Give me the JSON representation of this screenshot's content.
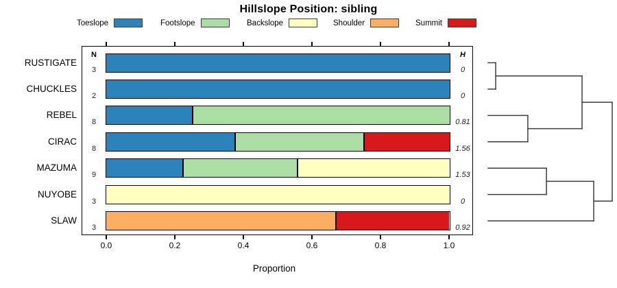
{
  "title": "Hillslope Position: sibling",
  "columns": {
    "n_header": "N",
    "h_header": "H"
  },
  "x_axis": {
    "label": "Proportion",
    "tick_labels": [
      "0.0",
      "0.2",
      "0.4",
      "0.6",
      "0.8",
      "1.0"
    ],
    "range": [
      0,
      1
    ]
  },
  "legend": [
    {
      "label": "Toeslope",
      "color": "#2B83BA"
    },
    {
      "label": "Footslope",
      "color": "#ABDDA4"
    },
    {
      "label": "Backslope",
      "color": "#FFFFBF"
    },
    {
      "label": "Shoulder",
      "color": "#FDAE61"
    },
    {
      "label": "Summit",
      "color": "#D7191C"
    }
  ],
  "chart_data": {
    "type": "bar",
    "subtype": "horizontal-stacked-proportion-with-dendrogram",
    "title": "Hillslope Position: sibling",
    "xlabel": "Proportion",
    "xlim": [
      0,
      1
    ],
    "x_ticks": [
      0,
      0.2,
      0.4,
      0.6,
      0.8,
      1.0
    ],
    "grid": false,
    "legend_position": "top",
    "series_labels": [
      "Toeslope",
      "Footslope",
      "Backslope",
      "Shoulder",
      "Summit"
    ],
    "series_colors": [
      "#2B83BA",
      "#ABDDA4",
      "#FFFFBF",
      "#FDAE61",
      "#D7191C"
    ],
    "rows": [
      {
        "name": "RUSTIGATE",
        "n": 3,
        "h": "0",
        "segments": [
          {
            "series": "Toeslope",
            "value": 1.0
          }
        ]
      },
      {
        "name": "CHUCKLES",
        "n": 2,
        "h": "0",
        "segments": [
          {
            "series": "Toeslope",
            "value": 1.0
          }
        ]
      },
      {
        "name": "REBEL",
        "n": 8,
        "h": "0.81",
        "segments": [
          {
            "series": "Toeslope",
            "value": 0.25
          },
          {
            "series": "Footslope",
            "value": 0.75
          }
        ]
      },
      {
        "name": "CIRAC",
        "n": 8,
        "h": "1.56",
        "segments": [
          {
            "series": "Toeslope",
            "value": 0.375
          },
          {
            "series": "Footslope",
            "value": 0.375
          },
          {
            "series": "Summit",
            "value": 0.25
          }
        ]
      },
      {
        "name": "MAZUMA",
        "n": 9,
        "h": "1.53",
        "segments": [
          {
            "series": "Toeslope",
            "value": 0.222
          },
          {
            "series": "Footslope",
            "value": 0.333
          },
          {
            "series": "Backslope",
            "value": 0.445
          }
        ]
      },
      {
        "name": "NUYOBE",
        "n": 3,
        "h": "0",
        "segments": [
          {
            "series": "Backslope",
            "value": 1.0
          }
        ]
      },
      {
        "name": "SLAW",
        "n": 3,
        "h": "0.92",
        "segments": [
          {
            "series": "Shoulder",
            "value": 0.667
          },
          {
            "series": "Summit",
            "value": 0.333
          }
        ]
      }
    ],
    "dendrogram": {
      "position": "right",
      "leaf_order": [
        "RUSTIGATE",
        "CHUCKLES",
        "REBEL",
        "CIRAC",
        "MAZUMA",
        "NUYOBE",
        "SLAW"
      ],
      "merges": [
        {
          "children": [
            "RUSTIGATE",
            "CHUCKLES"
          ],
          "rel_height": 0.061
        },
        {
          "children": [
            "REBEL",
            "CIRAC"
          ],
          "rel_height": 0.32
        },
        {
          "children": [
            "#0",
            "#1"
          ],
          "rel_height": 0.757
        },
        {
          "children": [
            "MAZUMA",
            "NUYOBE"
          ],
          "rel_height": 0.47
        },
        {
          "children": [
            "#3",
            "SLAW"
          ],
          "rel_height": 0.851
        },
        {
          "children": [
            "#2",
            "#4"
          ],
          "rel_height": 1.0
        }
      ]
    }
  }
}
